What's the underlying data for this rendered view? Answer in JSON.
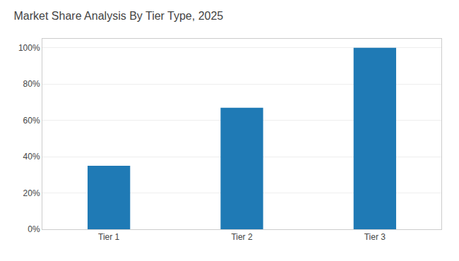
{
  "chart_data": {
    "type": "bar",
    "title": "Market Share Analysis By Tier Type, 2025",
    "categories": [
      "Tier 1",
      "Tier 2",
      "Tier 3"
    ],
    "values": [
      35,
      67,
      100
    ],
    "color": "#1F7AB5",
    "ylim": [
      0,
      105
    ],
    "yticks": [
      {
        "value": 0,
        "label": "0%"
      },
      {
        "value": 20,
        "label": "20%"
      },
      {
        "value": 40,
        "label": "40%"
      },
      {
        "value": 60,
        "label": "60%"
      },
      {
        "value": 80,
        "label": "80%"
      },
      {
        "value": 100,
        "label": "100%"
      }
    ],
    "grid": true
  }
}
